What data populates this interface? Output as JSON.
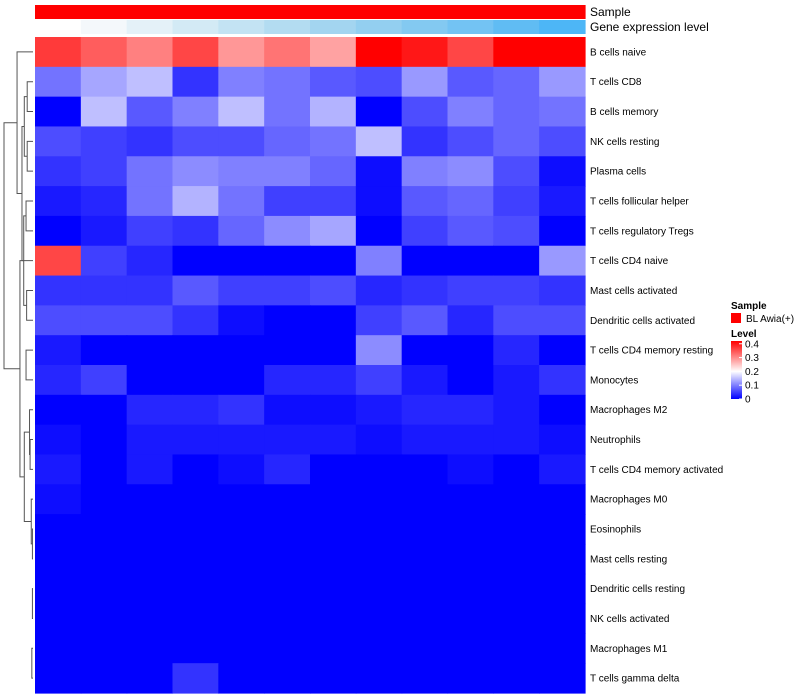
{
  "chart_data": {
    "type": "heatmap",
    "title": "",
    "columns": 12,
    "annotation_tracks": [
      {
        "name": "Sample",
        "colors": [
          "#ff0000",
          "#ff0000",
          "#ff0000",
          "#ff0000",
          "#ff0000",
          "#ff0000",
          "#ff0000",
          "#ff0000",
          "#ff0000",
          "#ff0000",
          "#ff0000",
          "#ff0000"
        ]
      },
      {
        "name": "Gene expression level",
        "colors": [
          "#ffffff",
          "#f4f8fb",
          "#e4f1f8",
          "#d3eaf5",
          "#c3e3f3",
          "#b3dcf1",
          "#a3d5f0",
          "#93cff0",
          "#83c9f1",
          "#73c3f3",
          "#60bcf3",
          "#4db6f6"
        ]
      }
    ],
    "rows": [
      "B cells naive",
      "T cells CD8",
      "B cells memory",
      "NK cells resting",
      "Plasma cells",
      "T cells follicular helper",
      "T cells regulatory  Tregs",
      "T cells CD4 naive",
      "Mast cells activated",
      "Dendritic cells activated",
      "T cells CD4 memory resting",
      "Monocytes",
      "Macrophages M2",
      "Neutrophils",
      "T cells CD4 memory activated",
      "Macrophages M0",
      "Eosinophils",
      "Mast cells resting",
      "Dendritic cells resting",
      "NK cells activated",
      "Macrophages M1",
      "T cells gamma delta"
    ],
    "values": [
      [
        0.37,
        0.34,
        0.31,
        0.36,
        0.29,
        0.32,
        0.28,
        0.42,
        0.4,
        0.36,
        0.42,
        0.42
      ],
      [
        0.09,
        0.13,
        0.15,
        0.04,
        0.1,
        0.09,
        0.07,
        0.06,
        0.12,
        0.07,
        0.08,
        0.12
      ],
      [
        0.0,
        0.15,
        0.07,
        0.1,
        0.15,
        0.09,
        0.14,
        0.0,
        0.06,
        0.1,
        0.08,
        0.09
      ],
      [
        0.06,
        0.05,
        0.04,
        0.06,
        0.06,
        0.08,
        0.09,
        0.15,
        0.04,
        0.06,
        0.08,
        0.06
      ],
      [
        0.04,
        0.05,
        0.09,
        0.11,
        0.1,
        0.1,
        0.08,
        0.01,
        0.1,
        0.11,
        0.06,
        0.01
      ],
      [
        0.02,
        0.03,
        0.09,
        0.14,
        0.09,
        0.05,
        0.05,
        0.01,
        0.07,
        0.08,
        0.05,
        0.02
      ],
      [
        0.0,
        0.02,
        0.05,
        0.04,
        0.08,
        0.11,
        0.13,
        0.0,
        0.05,
        0.07,
        0.06,
        0.0
      ],
      [
        0.36,
        0.05,
        0.03,
        0.0,
        0.0,
        0.0,
        0.0,
        0.1,
        0.0,
        0.0,
        0.0,
        0.12
      ],
      [
        0.04,
        0.04,
        0.04,
        0.07,
        0.05,
        0.05,
        0.06,
        0.03,
        0.04,
        0.05,
        0.05,
        0.04
      ],
      [
        0.06,
        0.06,
        0.06,
        0.04,
        0.01,
        0.0,
        0.0,
        0.05,
        0.07,
        0.03,
        0.06,
        0.06
      ],
      [
        0.02,
        0.0,
        0.0,
        0.0,
        0.0,
        0.0,
        0.0,
        0.11,
        0.0,
        0.0,
        0.03,
        0.0
      ],
      [
        0.03,
        0.05,
        0.0,
        0.0,
        0.0,
        0.03,
        0.03,
        0.05,
        0.02,
        0.0,
        0.02,
        0.04
      ],
      [
        0.0,
        0.0,
        0.03,
        0.03,
        0.04,
        0.01,
        0.01,
        0.02,
        0.03,
        0.03,
        0.02,
        0.0
      ],
      [
        0.01,
        0.0,
        0.02,
        0.02,
        0.02,
        0.02,
        0.02,
        0.01,
        0.02,
        0.02,
        0.02,
        0.01
      ],
      [
        0.02,
        0.0,
        0.02,
        0.0,
        0.01,
        0.03,
        0.0,
        0.0,
        0.0,
        0.01,
        0.0,
        0.02
      ],
      [
        0.01,
        0.0,
        0.0,
        0.0,
        0.0,
        0.0,
        0.0,
        0.0,
        0.0,
        0.0,
        0.0,
        0.0
      ],
      [
        0,
        0,
        0,
        0,
        0,
        0,
        0,
        0,
        0,
        0,
        0,
        0
      ],
      [
        0,
        0,
        0,
        0,
        0,
        0,
        0,
        0,
        0,
        0,
        0,
        0
      ],
      [
        0,
        0,
        0,
        0,
        0,
        0,
        0,
        0,
        0,
        0,
        0,
        0
      ],
      [
        0,
        0,
        0,
        0,
        0,
        0,
        0,
        0,
        0,
        0,
        0,
        0
      ],
      [
        0,
        0,
        0,
        0,
        0,
        0,
        0,
        0,
        0,
        0,
        0,
        0
      ],
      [
        0.0,
        0.0,
        0.0,
        0.04,
        0.0,
        0.0,
        0.0,
        0.0,
        0.0,
        0.0,
        0.0,
        0.0
      ]
    ],
    "color_scale": {
      "min": 0,
      "max": 0.42,
      "stops": [
        {
          "value": 0,
          "color": "#0000ff"
        },
        {
          "value": 0.2,
          "color": "#ffffff"
        },
        {
          "value": 0.42,
          "color": "#ff0000"
        }
      ]
    },
    "dendrogram": "rows",
    "legend": {
      "sample_title": "Sample",
      "sample_items": [
        {
          "label": "BL Awia(+)",
          "color": "#ff0000"
        }
      ],
      "level_title": "Level",
      "level_ticks": [
        "0.4",
        "0.3",
        "0.2",
        "0.1",
        "0"
      ],
      "level_tick_values": [
        0.4,
        0.3,
        0.2,
        0.1,
        0
      ],
      "placement": "right"
    }
  }
}
